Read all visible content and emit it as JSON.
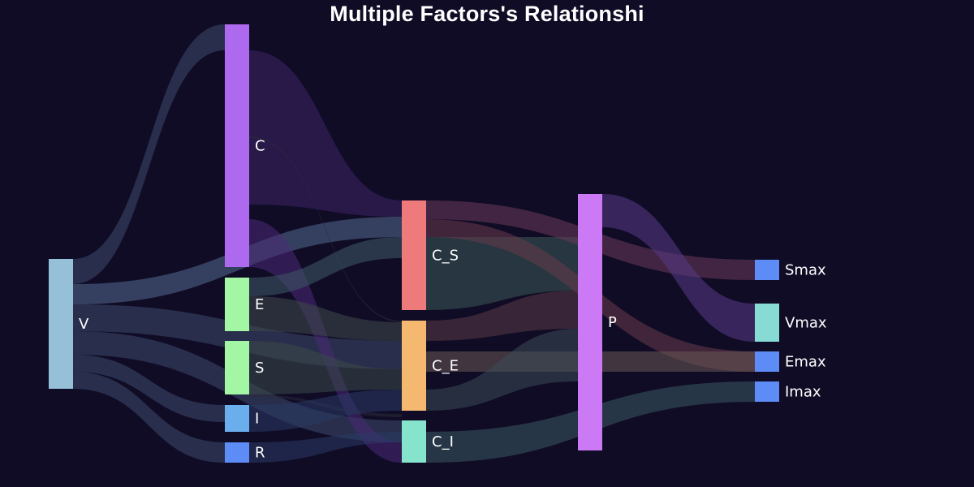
{
  "title": "Multiple Factors's Relationshi",
  "chart_data": {
    "type": "sankey",
    "nodes": [
      {
        "id": "V",
        "label": "V",
        "color": "#96bfd8"
      },
      {
        "id": "C",
        "label": "C",
        "color": "#ad6aee"
      },
      {
        "id": "E",
        "label": "E",
        "color": "#a3f7a4"
      },
      {
        "id": "S",
        "label": "S",
        "color": "#a3f7a4"
      },
      {
        "id": "I",
        "label": "I",
        "color": "#6aaeee"
      },
      {
        "id": "R",
        "label": "R",
        "color": "#5d8cf7"
      },
      {
        "id": "C_S",
        "label": "C_S",
        "color": "#ee7a7c"
      },
      {
        "id": "C_E",
        "label": "C_E",
        "color": "#f5b871"
      },
      {
        "id": "C_I",
        "label": "C_I",
        "color": "#86e4cc"
      },
      {
        "id": "P",
        "label": "P",
        "color": "#cb79f5"
      },
      {
        "id": "Smax",
        "label": "Smax",
        "color": "#5d8cf7"
      },
      {
        "id": "Vmax",
        "label": "Vmax",
        "color": "#86dcd4"
      },
      {
        "id": "Emax",
        "label": "Emax",
        "color": "#5d8cf7"
      },
      {
        "id": "Imax",
        "label": "Imax",
        "color": "#5d8cf7"
      }
    ],
    "links": [
      {
        "source": "V",
        "target": "C",
        "value": 2
      },
      {
        "source": "V",
        "target": "C_S",
        "value": 2
      },
      {
        "source": "V",
        "target": "C_E",
        "value": 2
      },
      {
        "source": "V",
        "target": "C_I",
        "value": 2
      },
      {
        "source": "V",
        "target": "I",
        "value": 1.5
      },
      {
        "source": "V",
        "target": "R",
        "value": 1.5
      },
      {
        "source": "C",
        "target": "C_S",
        "value": 12
      },
      {
        "source": "C",
        "target": "C_E",
        "value": 0.1
      },
      {
        "source": "C",
        "target": "C_I",
        "value": 12
      },
      {
        "source": "E",
        "target": "C_S",
        "value": 2
      },
      {
        "source": "E",
        "target": "C_E",
        "value": 3
      },
      {
        "source": "S",
        "target": "C_E",
        "value": 4
      },
      {
        "source": "S",
        "target": "C_I",
        "value": 3
      },
      {
        "source": "I",
        "target": "C_E",
        "value": 1.5
      },
      {
        "source": "R",
        "target": "C_I",
        "value": 1.5
      },
      {
        "source": "C_S",
        "target": "P",
        "value": 5
      },
      {
        "source": "C_S",
        "target": "Smax",
        "value": 1.7
      },
      {
        "source": "C_S",
        "target": "Emax",
        "value": 1.3
      },
      {
        "source": "C_E",
        "target": "P",
        "value": 4.5
      },
      {
        "source": "C_E",
        "target": "Emax",
        "value": 1.2
      },
      {
        "source": "C_I",
        "target": "P",
        "value": 3
      },
      {
        "source": "C_I",
        "target": "Imax",
        "value": 1.5
      },
      {
        "source": "P",
        "target": "Vmax",
        "value": 3
      }
    ]
  }
}
